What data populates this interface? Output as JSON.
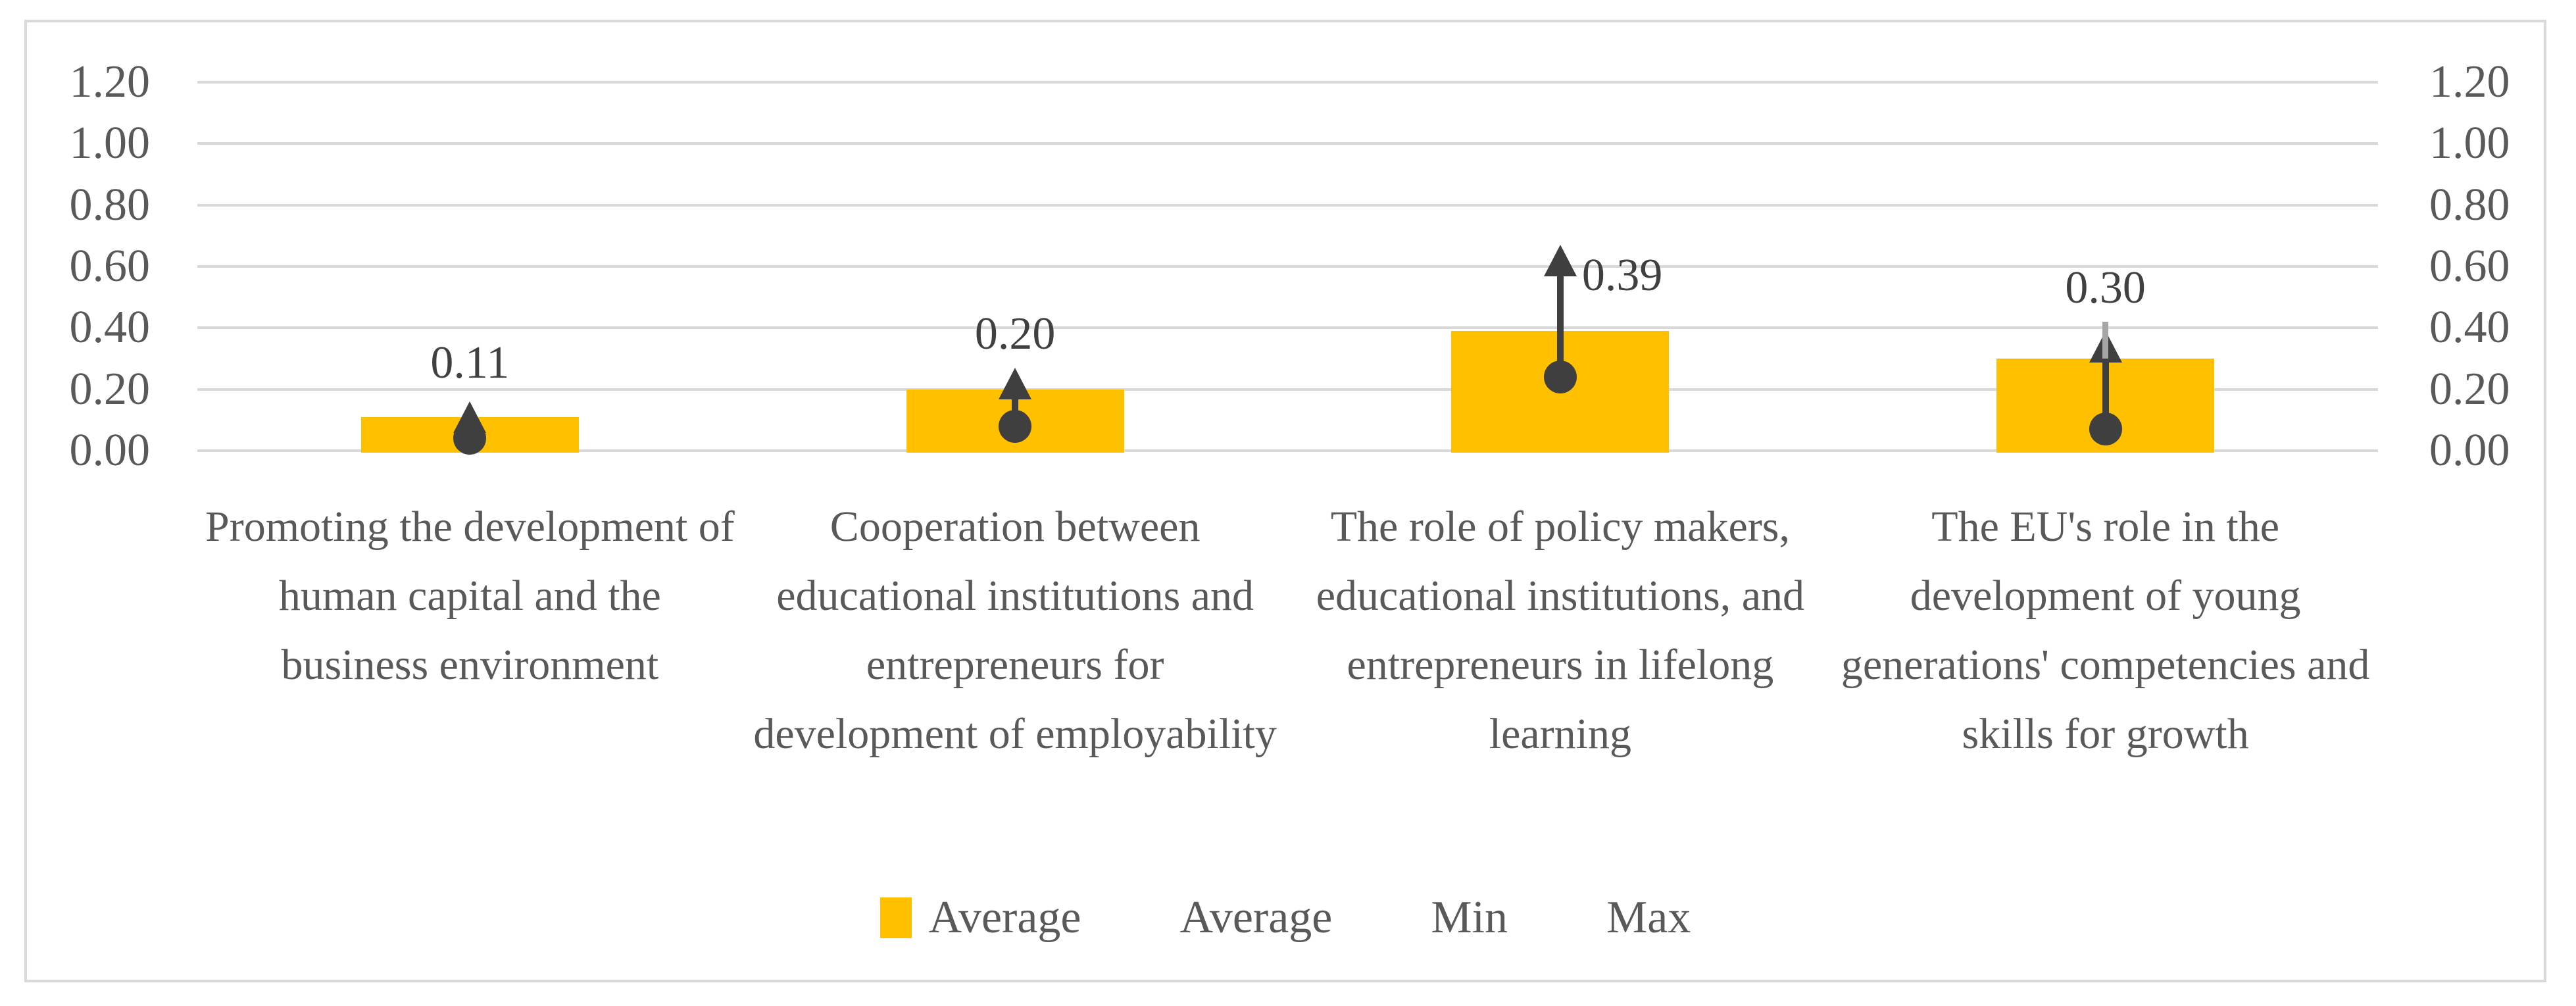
{
  "chart_data": {
    "type": "bar",
    "title": "",
    "categories": [
      "Promoting the development of human capital and the business environment",
      "Cooperation between educational institutions and entrepreneurs for development of employability",
      "The role of policy makers, educational institutions, and entrepreneurs in lifelong learning",
      "The EU's role in the development of young generations' competencies and skills for growth"
    ],
    "series": [
      {
        "name": "Average",
        "type": "bar",
        "color": "#FFC000",
        "values": [
          0.11,
          0.2,
          0.39,
          0.3
        ]
      },
      {
        "name": "Min",
        "type": "point",
        "marker": "circle",
        "color": "#3F3F3F",
        "values": [
          0.04,
          0.08,
          0.24,
          0.07
        ]
      },
      {
        "name": "Max",
        "type": "point",
        "marker": "arrow-up",
        "color": "#3F3F3F",
        "values": [
          0.16,
          0.27,
          0.67,
          0.39
        ]
      }
    ],
    "max_whisker": {
      "category_index": 3,
      "from": 0.3,
      "to": 0.42,
      "color": "#A6A6A6"
    },
    "data_labels": [
      {
        "text": "0.11",
        "category_index": 0,
        "y": 0.285,
        "anchor": "center"
      },
      {
        "text": "0.20",
        "category_index": 1,
        "y": 0.38,
        "anchor": "center"
      },
      {
        "text": "0.39",
        "category_index": 2,
        "y": 0.57,
        "anchor": "right-of-marker"
      },
      {
        "text": "0.30",
        "category_index": 3,
        "y": 0.53,
        "anchor": "center"
      }
    ],
    "y_axis": {
      "min": 0,
      "max": 1.2,
      "step": 0.2,
      "tick_labels": [
        "0.00",
        "0.20",
        "0.40",
        "0.60",
        "0.80",
        "1.00",
        "1.20"
      ],
      "sides": [
        "left",
        "right"
      ]
    },
    "grid": true,
    "legend": {
      "position": "bottom",
      "items": [
        {
          "label": "Average",
          "marker": "square",
          "color": "#FFC000"
        },
        {
          "label": "Average",
          "marker": "none"
        },
        {
          "label": "Min",
          "marker": "none"
        },
        {
          "label": "Max",
          "marker": "none"
        }
      ]
    }
  },
  "colors": {
    "bar": "#FFC000",
    "marker": "#3F3F3F",
    "whisker": "#A6A6A6",
    "gridline": "#D9D9D9",
    "frame": "#D9D9D9",
    "axis_text": "#595959",
    "category_text": "#595959",
    "data_label_text": "#404040",
    "background": "#FFFFFF"
  }
}
